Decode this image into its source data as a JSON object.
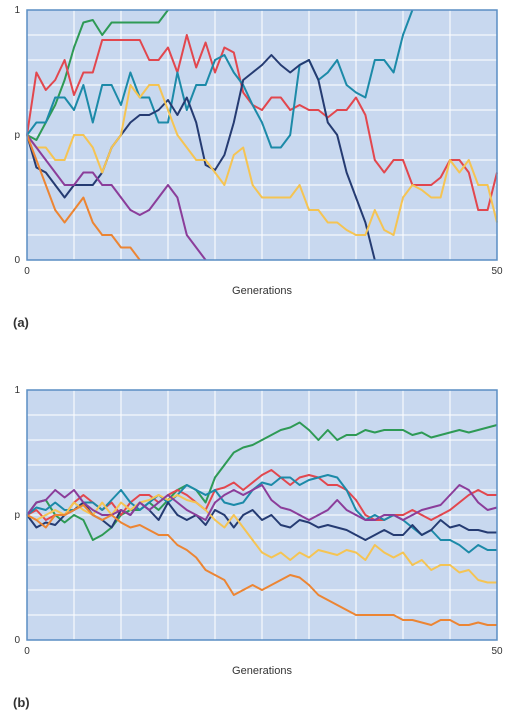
{
  "colors": {
    "background": "#c8d8ef",
    "grid": "#ffffff",
    "frame": "#5a8ec4",
    "green": "#2e9a55",
    "red": "#e2474e",
    "teal": "#1c8aa8",
    "navy": "#253b72",
    "yellow": "#f5c453",
    "purple": "#8b3d9a",
    "orange": "#ec8533"
  },
  "chart_data": [
    {
      "type": "line",
      "panel_label": "(a)",
      "xlabel": "Generations",
      "ylabel": "",
      "x_tick_labels": [
        "0",
        "50"
      ],
      "y_tick_labels": [
        "0",
        "p",
        "1"
      ],
      "xlim": [
        0,
        50
      ],
      "ylim": [
        0,
        1
      ],
      "grid": true,
      "x": [
        0,
        1,
        2,
        3,
        4,
        5,
        6,
        7,
        8,
        9,
        10,
        11,
        12,
        13,
        14,
        15,
        16,
        17,
        18,
        19,
        20,
        21,
        22,
        23,
        24,
        25,
        26,
        27,
        28,
        29,
        30,
        31,
        32,
        33,
        34,
        35,
        36,
        37,
        38,
        39,
        40,
        41,
        42,
        43,
        44,
        45,
        46,
        47,
        48,
        49,
        50
      ],
      "series": [
        {
          "color_key": "green",
          "values": [
            0.5,
            0.48,
            0.55,
            0.62,
            0.72,
            0.85,
            0.95,
            0.96,
            0.9,
            0.95,
            0.95,
            0.95,
            0.95,
            0.95,
            0.95,
            1.0,
            null,
            null,
            null,
            null,
            null,
            null,
            null,
            null,
            null,
            null,
            null,
            null,
            null,
            null,
            null,
            null,
            null,
            null,
            null,
            null,
            null,
            null,
            null,
            null,
            null,
            null,
            null,
            null,
            null,
            null,
            null,
            null,
            null,
            null,
            null
          ]
        },
        {
          "color_key": "red",
          "values": [
            0.5,
            0.75,
            0.68,
            0.72,
            0.8,
            0.66,
            0.75,
            0.75,
            0.88,
            0.88,
            0.88,
            0.88,
            0.88,
            0.8,
            0.8,
            0.85,
            0.75,
            0.9,
            0.77,
            0.87,
            0.75,
            0.85,
            0.83,
            0.67,
            0.62,
            0.6,
            0.65,
            0.65,
            0.6,
            0.62,
            0.6,
            0.6,
            0.57,
            0.6,
            0.6,
            0.65,
            0.58,
            0.4,
            0.35,
            0.4,
            0.4,
            0.3,
            0.3,
            0.3,
            0.33,
            0.4,
            0.4,
            0.35,
            0.2,
            0.2,
            0.35
          ]
        },
        {
          "color_key": "teal",
          "values": [
            0.5,
            0.55,
            0.55,
            0.65,
            0.65,
            0.6,
            0.7,
            0.55,
            0.7,
            0.7,
            0.62,
            0.75,
            0.65,
            0.65,
            0.55,
            0.55,
            0.75,
            0.6,
            0.7,
            0.7,
            0.8,
            0.82,
            0.75,
            0.7,
            0.62,
            0.55,
            0.45,
            0.45,
            0.5,
            0.78,
            0.8,
            0.72,
            0.75,
            0.8,
            0.7,
            0.67,
            0.65,
            0.8,
            0.8,
            0.75,
            0.9,
            1.0,
            null,
            null,
            null,
            null,
            null,
            null,
            null,
            null,
            null
          ]
        },
        {
          "color_key": "navy",
          "values": [
            0.5,
            0.37,
            0.35,
            0.3,
            0.25,
            0.3,
            0.3,
            0.3,
            0.35,
            0.45,
            0.5,
            0.55,
            0.58,
            0.58,
            0.6,
            0.64,
            0.58,
            0.65,
            0.55,
            0.38,
            0.36,
            0.42,
            0.55,
            0.72,
            0.75,
            0.78,
            0.82,
            0.78,
            0.75,
            0.78,
            0.8,
            0.72,
            0.55,
            0.5,
            0.35,
            0.25,
            0.15,
            0.0,
            null,
            null,
            null,
            null,
            null,
            null,
            null,
            null,
            null,
            null,
            null,
            null,
            null
          ]
        },
        {
          "color_key": "yellow",
          "values": [
            0.5,
            0.45,
            0.45,
            0.4,
            0.4,
            0.5,
            0.5,
            0.45,
            0.35,
            0.45,
            0.5,
            0.7,
            0.65,
            0.7,
            0.7,
            0.6,
            0.5,
            0.45,
            0.4,
            0.4,
            0.35,
            0.3,
            0.42,
            0.45,
            0.3,
            0.25,
            0.25,
            0.25,
            0.25,
            0.3,
            0.2,
            0.2,
            0.15,
            0.15,
            0.12,
            0.1,
            0.1,
            0.2,
            0.12,
            0.1,
            0.25,
            0.3,
            0.28,
            0.25,
            0.25,
            0.4,
            0.35,
            0.4,
            0.3,
            0.3,
            0.15
          ]
        },
        {
          "color_key": "purple",
          "values": [
            0.5,
            0.45,
            0.4,
            0.35,
            0.3,
            0.3,
            0.35,
            0.35,
            0.3,
            0.3,
            0.25,
            0.2,
            0.18,
            0.2,
            0.25,
            0.3,
            0.25,
            0.1,
            0.05,
            0.0,
            null,
            null,
            null,
            null,
            null,
            null,
            null,
            null,
            null,
            null,
            null,
            null,
            null,
            null,
            null,
            null,
            null,
            null,
            null,
            null,
            null,
            null,
            null,
            null,
            null,
            null,
            null,
            null,
            null,
            null,
            null
          ]
        },
        {
          "color_key": "orange",
          "values": [
            0.5,
            0.4,
            0.3,
            0.2,
            0.15,
            0.2,
            0.25,
            0.15,
            0.1,
            0.1,
            0.05,
            0.05,
            0.0,
            null,
            null,
            null,
            null,
            null,
            null,
            null,
            null,
            null,
            null,
            null,
            null,
            null,
            null,
            null,
            null,
            null,
            null,
            null,
            null,
            null,
            null,
            null,
            null,
            null,
            null,
            null,
            null,
            null,
            null,
            null,
            null,
            null,
            null,
            null,
            null,
            null,
            null
          ]
        }
      ]
    },
    {
      "type": "line",
      "panel_label": "(b)",
      "xlabel": "Generations",
      "ylabel": "",
      "x_tick_labels": [
        "0",
        "50"
      ],
      "y_tick_labels": [
        "0",
        "p",
        "1"
      ],
      "xlim": [
        0,
        50
      ],
      "ylim": [
        0,
        1
      ],
      "grid": true,
      "x": [
        0,
        1,
        2,
        3,
        4,
        5,
        6,
        7,
        8,
        9,
        10,
        11,
        12,
        13,
        14,
        15,
        16,
        17,
        18,
        19,
        20,
        21,
        22,
        23,
        24,
        25,
        26,
        27,
        28,
        29,
        30,
        31,
        32,
        33,
        34,
        35,
        36,
        37,
        38,
        39,
        40,
        41,
        42,
        43,
        44,
        45,
        46,
        47,
        48,
        49,
        50
      ],
      "series": [
        {
          "color_key": "green",
          "values": [
            0.5,
            0.55,
            0.56,
            0.5,
            0.47,
            0.5,
            0.48,
            0.4,
            0.42,
            0.45,
            0.5,
            0.52,
            0.52,
            0.55,
            0.52,
            0.56,
            0.6,
            0.62,
            0.6,
            0.55,
            0.65,
            0.7,
            0.75,
            0.77,
            0.78,
            0.8,
            0.82,
            0.84,
            0.85,
            0.87,
            0.84,
            0.8,
            0.84,
            0.8,
            0.82,
            0.82,
            0.84,
            0.83,
            0.84,
            0.84,
            0.84,
            0.82,
            0.83,
            0.81,
            0.82,
            0.83,
            0.84,
            0.83,
            0.84,
            0.85,
            0.86
          ]
        },
        {
          "color_key": "red",
          "values": [
            0.5,
            0.52,
            0.48,
            0.5,
            0.5,
            0.55,
            0.58,
            0.55,
            0.52,
            0.55,
            0.5,
            0.55,
            0.58,
            0.58,
            0.55,
            0.58,
            0.6,
            0.58,
            0.55,
            0.52,
            0.6,
            0.61,
            0.63,
            0.6,
            0.63,
            0.66,
            0.68,
            0.65,
            0.62,
            0.65,
            0.66,
            0.65,
            0.62,
            0.62,
            0.6,
            0.56,
            0.5,
            0.48,
            0.48,
            0.5,
            0.5,
            0.52,
            0.5,
            0.48,
            0.5,
            0.52,
            0.55,
            0.58,
            0.6,
            0.58,
            0.58
          ]
        },
        {
          "color_key": "teal",
          "values": [
            0.5,
            0.53,
            0.52,
            0.55,
            0.52,
            0.52,
            0.55,
            0.55,
            0.52,
            0.56,
            0.6,
            0.55,
            0.52,
            0.55,
            0.58,
            0.55,
            0.58,
            0.62,
            0.6,
            0.58,
            0.6,
            0.55,
            0.54,
            0.55,
            0.6,
            0.63,
            0.62,
            0.65,
            0.65,
            0.62,
            0.64,
            0.65,
            0.66,
            0.65,
            0.6,
            0.52,
            0.48,
            0.5,
            0.48,
            0.5,
            0.48,
            0.45,
            0.42,
            0.44,
            0.4,
            0.4,
            0.38,
            0.35,
            0.38,
            0.36,
            0.36
          ]
        },
        {
          "color_key": "navy",
          "values": [
            0.5,
            0.45,
            0.47,
            0.46,
            0.5,
            0.52,
            0.55,
            0.5,
            0.48,
            0.45,
            0.52,
            0.5,
            0.55,
            0.52,
            0.48,
            0.55,
            0.5,
            0.48,
            0.5,
            0.46,
            0.52,
            0.5,
            0.45,
            0.5,
            0.52,
            0.48,
            0.5,
            0.46,
            0.45,
            0.48,
            0.47,
            0.45,
            0.46,
            0.45,
            0.44,
            0.42,
            0.4,
            0.42,
            0.44,
            0.42,
            0.42,
            0.46,
            0.42,
            0.44,
            0.48,
            0.45,
            0.46,
            0.44,
            0.44,
            0.43,
            0.43
          ]
        },
        {
          "color_key": "yellow",
          "values": [
            0.5,
            0.48,
            0.5,
            0.52,
            0.5,
            0.55,
            0.52,
            0.5,
            0.55,
            0.5,
            0.55,
            0.52,
            0.55,
            0.56,
            0.58,
            0.56,
            0.58,
            0.56,
            0.55,
            0.52,
            0.48,
            0.45,
            0.5,
            0.45,
            0.4,
            0.35,
            0.33,
            0.35,
            0.32,
            0.35,
            0.33,
            0.36,
            0.35,
            0.34,
            0.36,
            0.35,
            0.32,
            0.38,
            0.35,
            0.33,
            0.35,
            0.3,
            0.32,
            0.28,
            0.3,
            0.3,
            0.27,
            0.28,
            0.24,
            0.23,
            0.23
          ]
        },
        {
          "color_key": "purple",
          "values": [
            0.5,
            0.55,
            0.56,
            0.6,
            0.57,
            0.6,
            0.55,
            0.52,
            0.5,
            0.5,
            0.52,
            0.5,
            0.55,
            0.52,
            0.55,
            0.58,
            0.55,
            0.52,
            0.5,
            0.48,
            0.55,
            0.58,
            0.6,
            0.58,
            0.6,
            0.62,
            0.56,
            0.53,
            0.52,
            0.5,
            0.48,
            0.5,
            0.52,
            0.56,
            0.52,
            0.5,
            0.48,
            0.48,
            0.5,
            0.5,
            0.48,
            0.5,
            0.52,
            0.53,
            0.54,
            0.58,
            0.62,
            0.6,
            0.55,
            0.52,
            0.53
          ]
        },
        {
          "color_key": "orange",
          "values": [
            0.5,
            0.48,
            0.45,
            0.5,
            0.5,
            0.52,
            0.54,
            0.5,
            0.48,
            0.5,
            0.47,
            0.45,
            0.46,
            0.44,
            0.42,
            0.42,
            0.38,
            0.36,
            0.33,
            0.28,
            0.26,
            0.24,
            0.18,
            0.2,
            0.22,
            0.2,
            0.22,
            0.24,
            0.26,
            0.25,
            0.22,
            0.18,
            0.16,
            0.14,
            0.12,
            0.1,
            0.1,
            0.1,
            0.1,
            0.1,
            0.08,
            0.08,
            0.07,
            0.06,
            0.08,
            0.08,
            0.06,
            0.06,
            0.07,
            0.06,
            0.06
          ]
        }
      ]
    }
  ]
}
